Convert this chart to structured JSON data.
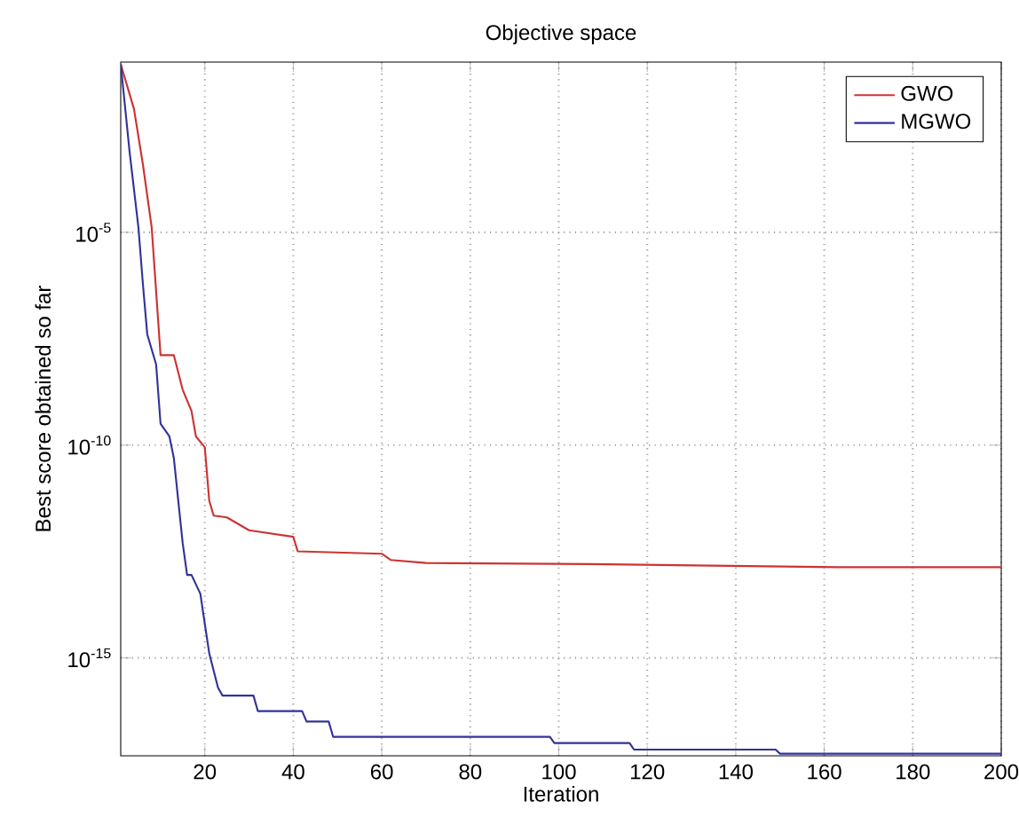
{
  "chart_data": {
    "type": "line",
    "title": "Objective space",
    "xlabel": "Iteration",
    "ylabel": "Best score obtained so far",
    "series": [
      {
        "name": "GWO",
        "color": "#cc3333",
        "x": [
          1,
          4,
          6,
          8,
          10,
          13,
          15,
          17,
          18,
          20,
          21,
          22,
          25,
          30,
          40,
          41,
          60,
          62,
          70,
          107,
          163,
          200
        ],
        "values": [
          0.09,
          0.0079,
          0.0004,
          1.3e-05,
          1.3e-08,
          1.3e-08,
          2e-09,
          6.3e-10,
          1.6e-10,
          8.9e-11,
          5e-12,
          2.2e-12,
          2e-12,
          1e-12,
          7e-13,
          3.2e-13,
          2.8e-13,
          2e-13,
          1.7e-13,
          1.6e-13,
          1.35e-13,
          1.35e-13
        ]
      },
      {
        "name": "MGWO",
        "color": "#333399",
        "x": [
          1,
          3,
          5,
          6,
          7,
          9,
          10,
          12,
          13,
          14,
          15,
          16,
          17,
          19,
          20,
          21,
          22,
          23,
          24,
          31,
          32,
          42,
          43,
          48,
          49,
          98,
          99,
          116,
          117,
          149,
          150,
          200
        ],
        "values": [
          0.09,
          0.00079,
          1.3e-05,
          6.3e-07,
          4e-08,
          7.9e-09,
          3.2e-10,
          1.6e-10,
          5e-11,
          5e-12,
          5e-13,
          8.9e-14,
          8.9e-14,
          3.2e-14,
          6.3e-15,
          1.3e-15,
          5e-16,
          2e-16,
          1.3e-16,
          1.3e-16,
          5.6e-17,
          5.6e-17,
          3.2e-17,
          3.2e-17,
          1.4e-17,
          1.4e-17,
          1e-17,
          1e-17,
          7e-18,
          7e-18,
          5.6e-18,
          5.6e-18
        ]
      }
    ],
    "xlim": [
      1,
      200
    ],
    "xticks": [
      20,
      40,
      60,
      80,
      100,
      120,
      140,
      160,
      180,
      200
    ],
    "ylim": [
      5e-18,
      0.1
    ],
    "yticks": [
      {
        "value": 1e-15,
        "label": "10$^{-15}$"
      },
      {
        "value": 1e-10,
        "label": "10$^{-10}$"
      },
      {
        "value": 1e-05,
        "label": "10$^{-5}$"
      }
    ],
    "log": "y",
    "grid": true,
    "legend": "top right",
    "line_style": "solid",
    "marker": "none"
  }
}
